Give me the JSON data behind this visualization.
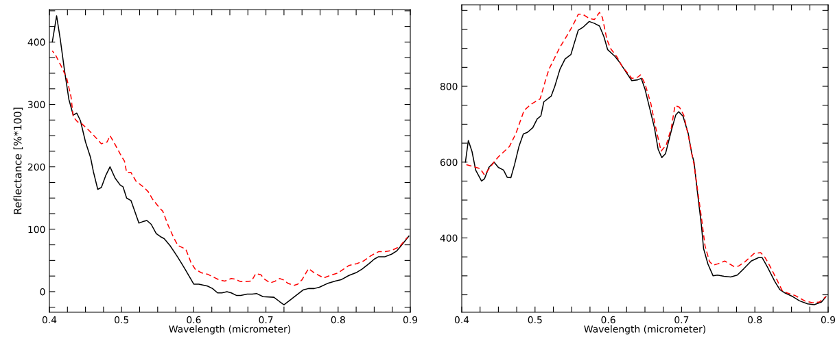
{
  "chart_data": [
    {
      "type": "line",
      "xlabel": "Wavelength (micrometer)",
      "ylabel": "Reflectance [%*100]",
      "xlim": [
        0.4,
        0.9
      ],
      "ylim": [
        -33,
        452
      ],
      "xticks": [
        0.4,
        {
          "value": 0.425,
          "label": null
        },
        {
          "value": 0.45,
          "label": null
        },
        {
          "value": 0.475,
          "label": null
        },
        0.5,
        {
          "value": 0.525,
          "label": null
        },
        {
          "value": 0.55,
          "label": null
        },
        {
          "value": 0.575,
          "label": null
        },
        0.6,
        {
          "value": 0.625,
          "label": null
        },
        {
          "value": 0.65,
          "label": null
        },
        {
          "value": 0.675,
          "label": null
        },
        0.7,
        {
          "value": 0.725,
          "label": null
        },
        {
          "value": 0.75,
          "label": null
        },
        {
          "value": 0.775,
          "label": null
        },
        0.8,
        {
          "value": 0.825,
          "label": null
        },
        {
          "value": 0.85,
          "label": null
        },
        {
          "value": 0.875,
          "label": null
        },
        0.9
      ],
      "yticks": [
        {
          "value": -25,
          "label": null
        },
        0,
        {
          "value": 25,
          "label": null
        },
        {
          "value": 50,
          "label": null
        },
        {
          "value": 75,
          "label": null
        },
        100,
        {
          "value": 125,
          "label": null
        },
        {
          "value": 150,
          "label": null
        },
        {
          "value": 175,
          "label": null
        },
        200,
        {
          "value": 225,
          "label": null
        },
        {
          "value": 250,
          "label": null
        },
        {
          "value": 275,
          "label": null
        },
        300,
        {
          "value": 325,
          "label": null
        },
        {
          "value": 350,
          "label": null
        },
        {
          "value": 375,
          "label": null
        },
        400,
        {
          "value": 425,
          "label": null
        },
        {
          "value": 450,
          "label": null
        }
      ],
      "series": [
        {
          "color": "#000000",
          "line_style": "solid",
          "x": [
            0.404,
            0.41,
            0.415,
            0.421,
            0.427,
            0.433,
            0.438,
            0.443,
            0.45,
            0.457,
            0.461,
            0.467,
            0.472,
            0.478,
            0.484,
            0.491,
            0.498,
            0.502,
            0.507,
            0.513,
            0.524,
            0.529,
            0.535,
            0.541,
            0.548,
            0.554,
            0.559,
            0.567,
            0.578,
            0.587,
            0.6,
            0.607,
            0.619,
            0.626,
            0.633,
            0.639,
            0.646,
            0.652,
            0.659,
            0.665,
            0.674,
            0.681,
            0.687,
            0.696,
            0.711,
            0.719,
            0.725,
            0.733,
            0.744,
            0.752,
            0.759,
            0.767,
            0.774,
            0.785,
            0.796,
            0.804,
            0.815,
            0.826,
            0.833,
            0.843,
            0.85,
            0.856,
            0.865,
            0.874,
            0.881,
            0.889,
            0.898
          ],
          "values": [
            400,
            442,
            405,
            354,
            308,
            283,
            286,
            274,
            240,
            215,
            192,
            164,
            167,
            186,
            200,
            182,
            171,
            168,
            150,
            146,
            110,
            112,
            114,
            108,
            93,
            88,
            85,
            74,
            55,
            38,
            12,
            12,
            9,
            5,
            -2,
            -2,
            0,
            -2,
            -6,
            -6,
            -4,
            -4,
            -3,
            -8,
            -9,
            -16,
            -21,
            -14,
            -4,
            3,
            5,
            5,
            7,
            13,
            17,
            19,
            26,
            31,
            36,
            45,
            52,
            56,
            56,
            60,
            65,
            76,
            89
          ]
        },
        {
          "color": "#ff0000",
          "line_style": "dashed",
          "x": [
            0.404,
            0.409,
            0.417,
            0.424,
            0.43,
            0.433,
            0.439,
            0.444,
            0.456,
            0.465,
            0.472,
            0.48,
            0.484,
            0.489,
            0.498,
            0.504,
            0.507,
            0.513,
            0.52,
            0.531,
            0.537,
            0.543,
            0.552,
            0.557,
            0.565,
            0.572,
            0.578,
            0.589,
            0.596,
            0.602,
            0.611,
            0.619,
            0.626,
            0.635,
            0.643,
            0.652,
            0.657,
            0.665,
            0.672,
            0.68,
            0.686,
            0.693,
            0.698,
            0.706,
            0.713,
            0.719,
            0.724,
            0.731,
            0.739,
            0.744,
            0.75,
            0.759,
            0.767,
            0.78,
            0.789,
            0.8,
            0.815,
            0.826,
            0.835,
            0.846,
            0.856,
            0.865,
            0.874,
            0.885,
            0.896
          ],
          "values": [
            386,
            378,
            360,
            342,
            312,
            280,
            272,
            270,
            257,
            246,
            237,
            240,
            250,
            240,
            221,
            209,
            191,
            191,
            177,
            167,
            160,
            148,
            135,
            129,
            105,
            87,
            74,
            68,
            47,
            36,
            30,
            28,
            24,
            19,
            17,
            21,
            20,
            16,
            16,
            17,
            29,
            27,
            20,
            14,
            17,
            21,
            19,
            13,
            10,
            12,
            19,
            37,
            30,
            22,
            26,
            30,
            42,
            45,
            49,
            58,
            64,
            64,
            66,
            72,
            87
          ]
        }
      ]
    },
    {
      "type": "line",
      "xlabel": "Wavelength (micrometer)",
      "xlim": [
        0.4,
        0.9
      ],
      "ylim": [
        204,
        1015
      ],
      "xticks": [
        0.4,
        {
          "value": 0.425,
          "label": null
        },
        {
          "value": 0.45,
          "label": null
        },
        {
          "value": 0.475,
          "label": null
        },
        0.5,
        {
          "value": 0.525,
          "label": null
        },
        {
          "value": 0.55,
          "label": null
        },
        {
          "value": 0.575,
          "label": null
        },
        0.6,
        {
          "value": 0.625,
          "label": null
        },
        {
          "value": 0.65,
          "label": null
        },
        {
          "value": 0.675,
          "label": null
        },
        0.7,
        {
          "value": 0.725,
          "label": null
        },
        {
          "value": 0.75,
          "label": null
        },
        {
          "value": 0.775,
          "label": null
        },
        0.8,
        {
          "value": 0.825,
          "label": null
        },
        {
          "value": 0.85,
          "label": null
        },
        {
          "value": 0.875,
          "label": null
        },
        0.9
      ],
      "yticks": [
        {
          "value": 250,
          "label": null
        },
        {
          "value": 300,
          "label": null
        },
        {
          "value": 350,
          "label": null
        },
        400,
        {
          "value": 450,
          "label": null
        },
        {
          "value": 500,
          "label": null
        },
        {
          "value": 550,
          "label": null
        },
        600,
        {
          "value": 650,
          "label": null
        },
        {
          "value": 700,
          "label": null
        },
        {
          "value": 750,
          "label": null
        },
        800,
        {
          "value": 850,
          "label": null
        },
        {
          "value": 900,
          "label": null
        },
        {
          "value": 950,
          "label": null
        },
        {
          "value": 1000,
          "label": null
        }
      ],
      "series": [
        {
          "color": "#000000",
          "line_style": "solid",
          "x": [
            0.405,
            0.409,
            0.414,
            0.419,
            0.427,
            0.431,
            0.437,
            0.444,
            0.45,
            0.457,
            0.462,
            0.467,
            0.472,
            0.478,
            0.484,
            0.49,
            0.497,
            0.503,
            0.508,
            0.512,
            0.522,
            0.527,
            0.534,
            0.541,
            0.549,
            0.553,
            0.559,
            0.565,
            0.574,
            0.581,
            0.588,
            0.594,
            0.599,
            0.609,
            0.616,
            0.623,
            0.632,
            0.64,
            0.645,
            0.65,
            0.657,
            0.663,
            0.668,
            0.673,
            0.678,
            0.686,
            0.692,
            0.696,
            0.702,
            0.709,
            0.714,
            0.717,
            0.721,
            0.727,
            0.73,
            0.736,
            0.743,
            0.749,
            0.758,
            0.767,
            0.776,
            0.785,
            0.795,
            0.805,
            0.81,
            0.817,
            0.827,
            0.834,
            0.841,
            0.852,
            0.861,
            0.872,
            0.881,
            0.891,
            0.897
          ],
          "values": [
            600,
            657,
            628,
            579,
            550,
            556,
            586,
            600,
            586,
            579,
            560,
            559,
            593,
            641,
            674,
            679,
            691,
            714,
            722,
            759,
            774,
            800,
            845,
            872,
            884,
            910,
            948,
            955,
            971,
            966,
            959,
            931,
            897,
            879,
            862,
            841,
            815,
            817,
            821,
            793,
            738,
            690,
            634,
            612,
            622,
            683,
            724,
            733,
            721,
            676,
            621,
            600,
            531,
            434,
            372,
            331,
            300,
            302,
            299,
            297,
            302,
            319,
            339,
            348,
            348,
            324,
            286,
            264,
            255,
            245,
            234,
            226,
            224,
            231,
            245
          ]
        },
        {
          "color": "#ff0000",
          "line_style": "dashed",
          "x": [
            0.405,
            0.425,
            0.431,
            0.436,
            0.444,
            0.45,
            0.465,
            0.474,
            0.485,
            0.494,
            0.507,
            0.514,
            0.519,
            0.534,
            0.545,
            0.552,
            0.559,
            0.565,
            0.574,
            0.581,
            0.588,
            0.592,
            0.598,
            0.603,
            0.612,
            0.618,
            0.625,
            0.632,
            0.64,
            0.644,
            0.65,
            0.658,
            0.664,
            0.672,
            0.679,
            0.686,
            0.691,
            0.697,
            0.703,
            0.71,
            0.717,
            0.721,
            0.727,
            0.732,
            0.738,
            0.743,
            0.75,
            0.759,
            0.765,
            0.772,
            0.778,
            0.787,
            0.799,
            0.808,
            0.814,
            0.821,
            0.83,
            0.837,
            0.844,
            0.855,
            0.868,
            0.879,
            0.888,
            0.897
          ],
          "values": [
            594,
            583,
            566,
            579,
            600,
            614,
            641,
            676,
            736,
            752,
            767,
            814,
            845,
            903,
            938,
            962,
            990,
            990,
            979,
            976,
            995,
            981,
            924,
            900,
            877,
            855,
            838,
            821,
            824,
            830,
            807,
            755,
            697,
            629,
            645,
            690,
            749,
            745,
            724,
            662,
            593,
            538,
            455,
            379,
            338,
            328,
            332,
            339,
            332,
            324,
            326,
            338,
            359,
            361,
            348,
            324,
            290,
            262,
            255,
            248,
            234,
            229,
            231,
            245
          ]
        }
      ]
    }
  ]
}
